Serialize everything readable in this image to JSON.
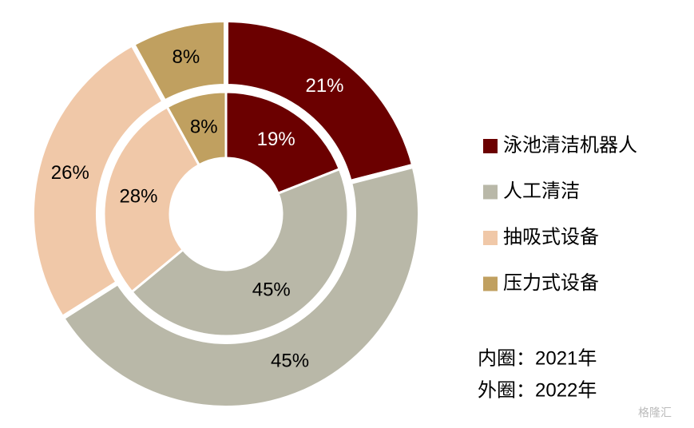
{
  "chart_data": {
    "type": "donut",
    "categories": [
      "泳池清洁机器人",
      "人工清洁",
      "抽吸式设备",
      "压力式设备"
    ],
    "colors": [
      "#6b0000",
      "#b9b8a8",
      "#f0c8a8",
      "#c0a060"
    ],
    "series": [
      {
        "values": [
          19,
          45,
          28,
          8
        ],
        "value_labels": [
          "19%",
          "45%",
          "28%",
          "8%"
        ]
      },
      {
        "values": [
          21,
          45,
          26,
          8
        ],
        "value_labels": [
          "21%",
          "45%",
          "26%",
          "8%"
        ]
      }
    ],
    "annotations": [
      "内圈：2021年",
      "外圈：2022年"
    ],
    "watermark": "格隆汇"
  }
}
